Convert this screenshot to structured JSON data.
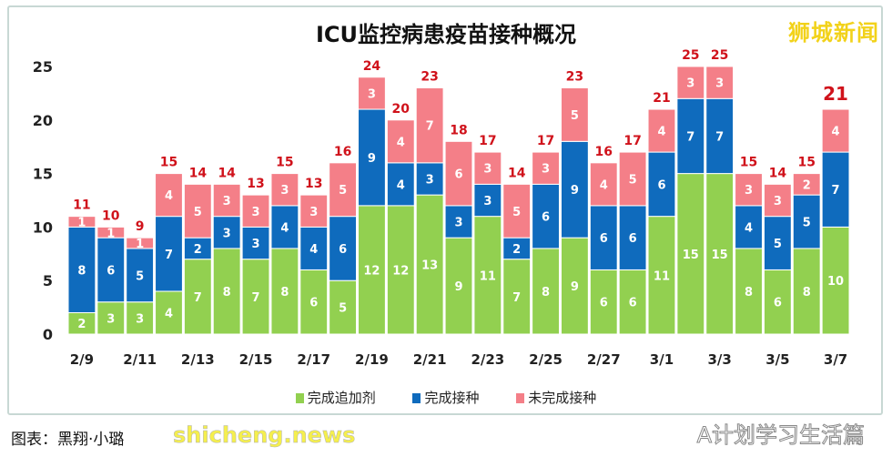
{
  "chart_data": {
    "type": "bar",
    "stacked": true,
    "title": "ICU监控病患疫苗接种概况",
    "categories": [
      "2/9",
      "2/10",
      "2/11",
      "2/12",
      "2/13",
      "2/14",
      "2/15",
      "2/16",
      "2/17",
      "2/18",
      "2/19",
      "2/20",
      "2/21",
      "2/22",
      "2/23",
      "2/24",
      "2/25",
      "2/26",
      "2/27",
      "2/28",
      "3/1",
      "3/2",
      "3/3",
      "3/4",
      "3/5",
      "3/6",
      "3/7"
    ],
    "tick_labels": [
      "2/9",
      "2/11",
      "2/13",
      "2/15",
      "2/17",
      "2/19",
      "2/21",
      "2/23",
      "2/25",
      "2/27",
      "3/1",
      "3/3",
      "3/5",
      "3/7"
    ],
    "series": [
      {
        "name": "完成追加剂",
        "color": "#92d050",
        "values": [
          2,
          3,
          3,
          4,
          7,
          8,
          7,
          8,
          6,
          5,
          12,
          12,
          13,
          9,
          11,
          7,
          8,
          9,
          6,
          6,
          11,
          15,
          15,
          8,
          6,
          8,
          10
        ]
      },
      {
        "name": "完成接种",
        "color": "#0f6bbd",
        "values": [
          8,
          6,
          5,
          7,
          2,
          3,
          3,
          4,
          4,
          6,
          9,
          4,
          3,
          3,
          3,
          2,
          6,
          9,
          6,
          6,
          6,
          7,
          7,
          4,
          5,
          5,
          7
        ]
      },
      {
        "name": "未完成接种",
        "color": "#f47f88",
        "values": [
          1,
          1,
          1,
          4,
          5,
          3,
          3,
          3,
          3,
          5,
          3,
          4,
          7,
          6,
          3,
          5,
          3,
          5,
          4,
          5,
          4,
          3,
          3,
          3,
          3,
          2,
          4
        ]
      }
    ],
    "totals": [
      11,
      10,
      9,
      15,
      14,
      14,
      13,
      15,
      13,
      16,
      24,
      20,
      23,
      18,
      17,
      14,
      17,
      23,
      16,
      17,
      21,
      25,
      25,
      15,
      14,
      15,
      21
    ],
    "ylim": [
      0,
      25
    ],
    "yticks": [
      0,
      5,
      10,
      15,
      20,
      25
    ],
    "grid": false,
    "legend": "bottom"
  },
  "brand": "狮城新闻",
  "credit": "图表：黑翔·小璐",
  "site": "shicheng.news",
  "watermark": "A计划学习生活篇"
}
